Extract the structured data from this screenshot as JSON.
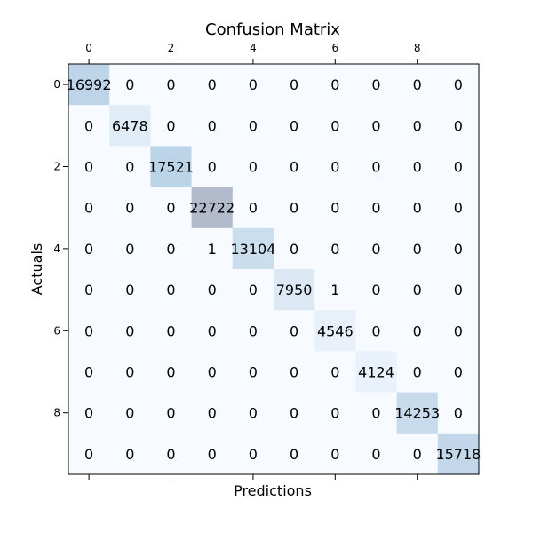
{
  "chart_data": {
    "type": "heatmap",
    "title": "Confusion Matrix",
    "xlabel": "Predictions",
    "ylabel": "Actuals",
    "x_tick_labels": [
      "0",
      "2",
      "4",
      "6",
      "8"
    ],
    "y_tick_labels": [
      "0",
      "2",
      "4",
      "6",
      "8"
    ],
    "x_ticks_position": "top",
    "grid": false,
    "colormap": "Blues",
    "matrix": [
      [
        16992,
        0,
        0,
        0,
        0,
        0,
        0,
        0,
        0,
        0
      ],
      [
        0,
        6478,
        0,
        0,
        0,
        0,
        0,
        0,
        0,
        0
      ],
      [
        0,
        0,
        17521,
        0,
        0,
        0,
        0,
        0,
        0,
        0
      ],
      [
        0,
        0,
        0,
        22722,
        0,
        0,
        0,
        0,
        0,
        0
      ],
      [
        0,
        0,
        0,
        1,
        13104,
        0,
        0,
        0,
        0,
        0
      ],
      [
        0,
        0,
        0,
        0,
        0,
        7950,
        1,
        0,
        0,
        0
      ],
      [
        0,
        0,
        0,
        0,
        0,
        0,
        4546,
        0,
        0,
        0
      ],
      [
        0,
        0,
        0,
        0,
        0,
        0,
        0,
        4124,
        0,
        0
      ],
      [
        0,
        0,
        0,
        0,
        0,
        0,
        0,
        0,
        14253,
        0
      ],
      [
        0,
        0,
        0,
        0,
        0,
        0,
        0,
        0,
        0,
        15718
      ]
    ]
  }
}
